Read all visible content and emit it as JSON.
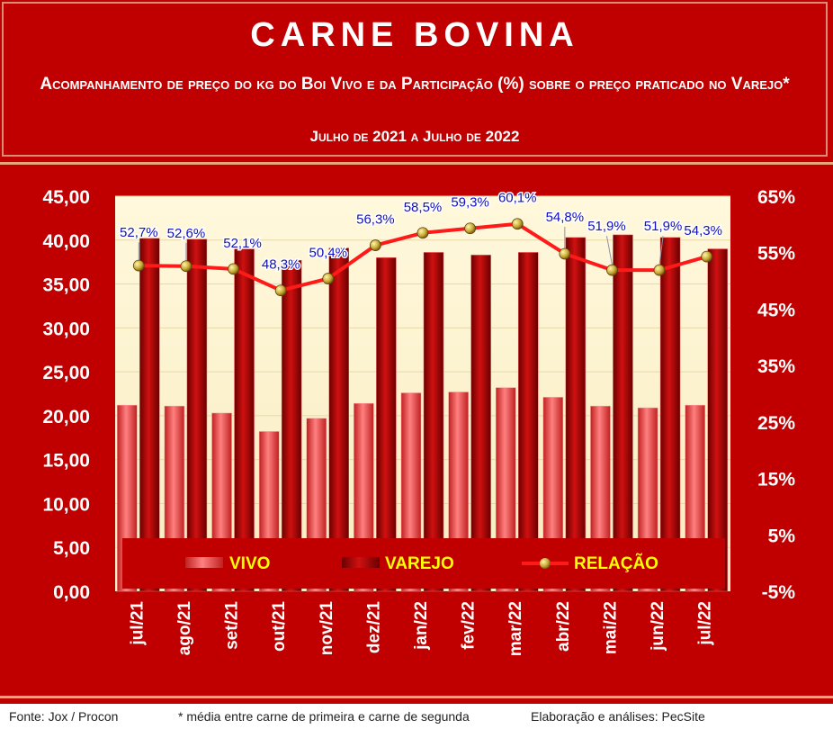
{
  "header": {
    "title": "CARNE BOVINA",
    "subtitle": "Acompanhamento de preço do kg do Boi Vivo e da Participação (%) sobre o preço praticado no Varejo*",
    "period": "Julho de 2021 a Julho de 2022"
  },
  "footer": {
    "source": "Fonte: Jox / Procon",
    "note": "* média entre carne de primeira e carne de segunda",
    "credit": "Elaboração e análises: PecSite"
  },
  "colors": {
    "background": "#c00000",
    "plot_area": "#fff5d6",
    "vivo": "#f05050",
    "varejo": "#b00000",
    "relacao_line": "#ff1a1a",
    "marker": "#c8b030",
    "labels": "#1010c0",
    "legend_text": "#ffff00"
  },
  "chart_data": {
    "type": "bar",
    "categories": [
      "jul/21",
      "ago/21",
      "set/21",
      "out/21",
      "nov/21",
      "dez/21",
      "jan/22",
      "fev/22",
      "mar/22",
      "abr/22",
      "mai/22",
      "jun/22",
      "jul/22"
    ],
    "series": [
      {
        "name": "VIVO",
        "type": "bar",
        "axis": "left",
        "values": [
          21.2,
          21.1,
          20.3,
          18.2,
          19.7,
          21.4,
          22.6,
          22.7,
          23.2,
          22.1,
          21.1,
          20.9,
          21.2
        ]
      },
      {
        "name": "VAREJO",
        "type": "bar",
        "axis": "left",
        "values": [
          40.2,
          40.1,
          39.0,
          37.7,
          39.1,
          38.0,
          38.6,
          38.3,
          38.6,
          40.3,
          40.6,
          40.3,
          39.0
        ]
      },
      {
        "name": "RELAÇÃO",
        "type": "line",
        "axis": "right",
        "values": [
          52.7,
          52.6,
          52.1,
          48.3,
          50.4,
          56.3,
          58.5,
          59.3,
          60.1,
          54.8,
          51.9,
          51.9,
          54.3
        ],
        "labels": [
          "52,7%",
          "52,6%",
          "52,1%",
          "48,3%",
          "50,4%",
          "56,3%",
          "58,5%",
          "59,3%",
          "60,1%",
          "54,8%",
          "51,9%",
          "51,9%",
          "54,3%"
        ]
      }
    ],
    "y_left": {
      "min": 0,
      "max": 45,
      "ticks": [
        "0,00",
        "5,00",
        "10,00",
        "15,00",
        "20,00",
        "25,00",
        "30,00",
        "35,00",
        "40,00",
        "45,00"
      ]
    },
    "y_right": {
      "min": -5,
      "max": 65,
      "ticks": [
        "-5%",
        "5%",
        "15%",
        "25%",
        "35%",
        "45%",
        "55%",
        "65%"
      ]
    },
    "legend": [
      "VIVO",
      "VAREJO",
      "RELAÇÃO"
    ],
    "legend_position": "bottom-inside",
    "grid": true
  }
}
